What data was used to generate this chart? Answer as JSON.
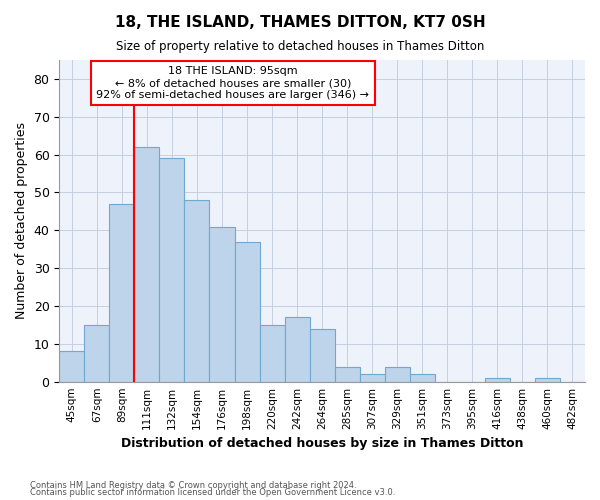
{
  "title": "18, THE ISLAND, THAMES DITTON, KT7 0SH",
  "subtitle": "Size of property relative to detached houses in Thames Ditton",
  "xlabel": "Distribution of detached houses by size in Thames Ditton",
  "ylabel": "Number of detached properties",
  "bar_labels": [
    "45sqm",
    "67sqm",
    "89sqm",
    "111sqm",
    "132sqm",
    "154sqm",
    "176sqm",
    "198sqm",
    "220sqm",
    "242sqm",
    "264sqm",
    "285sqm",
    "307sqm",
    "329sqm",
    "351sqm",
    "373sqm",
    "395sqm",
    "416sqm",
    "438sqm",
    "460sqm",
    "482sqm"
  ],
  "bar_values": [
    8,
    15,
    47,
    62,
    59,
    48,
    41,
    37,
    15,
    17,
    14,
    4,
    2,
    4,
    2,
    0,
    0,
    1,
    0,
    1,
    0
  ],
  "bar_color": "#bdd4eb",
  "bar_edgecolor": "#6fa8d0",
  "ylim": [
    0,
    85
  ],
  "yticks": [
    0,
    10,
    20,
    30,
    40,
    50,
    60,
    70,
    80
  ],
  "red_line_x": 2.5,
  "property_label": "18 THE ISLAND: 95sqm",
  "annotation_line1": "← 8% of detached houses are smaller (30)",
  "annotation_line2": "92% of semi-detached houses are larger (346) →",
  "footer1": "Contains HM Land Registry data © Crown copyright and database right 2024.",
  "footer2": "Contains public sector information licensed under the Open Government Licence v3.0.",
  "bg_color": "#eef2fb",
  "grid_color": "#c5cfe0"
}
